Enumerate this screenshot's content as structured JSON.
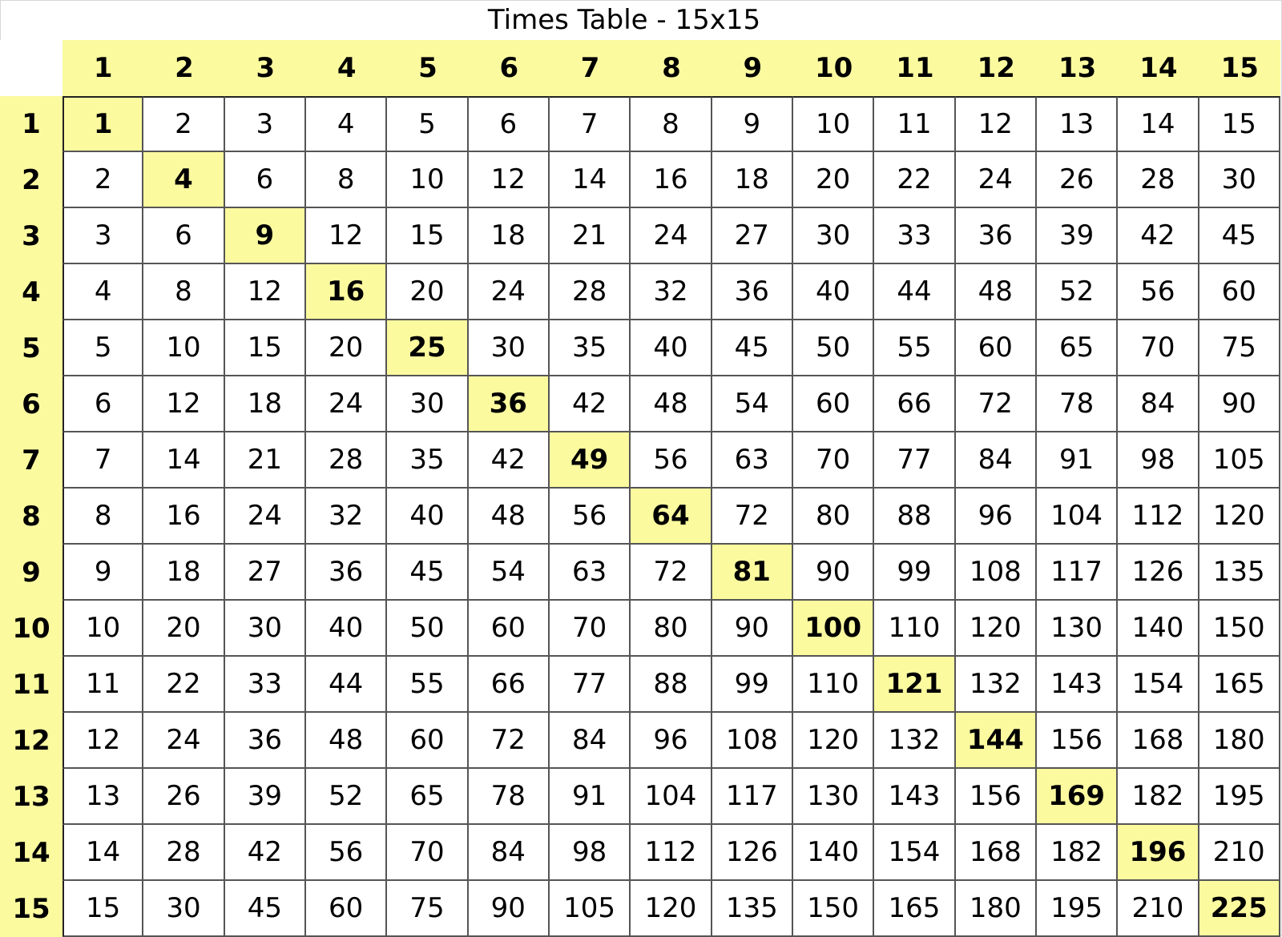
{
  "title": "Times Table - 15x15",
  "colors": {
    "header_bg": "#fbfa9f",
    "diagonal_bg": "#fbfa9f",
    "cell_bg": "#ffffff",
    "border": "#555555"
  },
  "column_headers": [
    "1",
    "2",
    "3",
    "4",
    "5",
    "6",
    "7",
    "8",
    "9",
    "10",
    "11",
    "12",
    "13",
    "14",
    "15"
  ],
  "row_headers": [
    "1",
    "2",
    "3",
    "4",
    "5",
    "6",
    "7",
    "8",
    "9",
    "10",
    "11",
    "12",
    "13",
    "14",
    "15"
  ],
  "rows": [
    [
      "1",
      "2",
      "3",
      "4",
      "5",
      "6",
      "7",
      "8",
      "9",
      "10",
      "11",
      "12",
      "13",
      "14",
      "15"
    ],
    [
      "2",
      "4",
      "6",
      "8",
      "10",
      "12",
      "14",
      "16",
      "18",
      "20",
      "22",
      "24",
      "26",
      "28",
      "30"
    ],
    [
      "3",
      "6",
      "9",
      "12",
      "15",
      "18",
      "21",
      "24",
      "27",
      "30",
      "33",
      "36",
      "39",
      "42",
      "45"
    ],
    [
      "4",
      "8",
      "12",
      "16",
      "20",
      "24",
      "28",
      "32",
      "36",
      "40",
      "44",
      "48",
      "52",
      "56",
      "60"
    ],
    [
      "5",
      "10",
      "15",
      "20",
      "25",
      "30",
      "35",
      "40",
      "45",
      "50",
      "55",
      "60",
      "65",
      "70",
      "75"
    ],
    [
      "6",
      "12",
      "18",
      "24",
      "30",
      "36",
      "42",
      "48",
      "54",
      "60",
      "66",
      "72",
      "78",
      "84",
      "90"
    ],
    [
      "7",
      "14",
      "21",
      "28",
      "35",
      "42",
      "49",
      "56",
      "63",
      "70",
      "77",
      "84",
      "91",
      "98",
      "105"
    ],
    [
      "8",
      "16",
      "24",
      "32",
      "40",
      "48",
      "56",
      "64",
      "72",
      "80",
      "88",
      "96",
      "104",
      "112",
      "120"
    ],
    [
      "9",
      "18",
      "27",
      "36",
      "45",
      "54",
      "63",
      "72",
      "81",
      "90",
      "99",
      "108",
      "117",
      "126",
      "135"
    ],
    [
      "10",
      "20",
      "30",
      "40",
      "50",
      "60",
      "70",
      "80",
      "90",
      "100",
      "110",
      "120",
      "130",
      "140",
      "150"
    ],
    [
      "11",
      "22",
      "33",
      "44",
      "55",
      "66",
      "77",
      "88",
      "99",
      "110",
      "121",
      "132",
      "143",
      "154",
      "165"
    ],
    [
      "12",
      "24",
      "36",
      "48",
      "60",
      "72",
      "84",
      "96",
      "108",
      "120",
      "132",
      "144",
      "156",
      "168",
      "180"
    ],
    [
      "13",
      "26",
      "39",
      "52",
      "65",
      "78",
      "91",
      "104",
      "117",
      "130",
      "143",
      "156",
      "169",
      "182",
      "195"
    ],
    [
      "14",
      "28",
      "42",
      "56",
      "70",
      "84",
      "98",
      "112",
      "126",
      "140",
      "154",
      "168",
      "182",
      "196",
      "210"
    ],
    [
      "15",
      "30",
      "45",
      "60",
      "75",
      "90",
      "105",
      "120",
      "135",
      "150",
      "165",
      "180",
      "195",
      "210",
      "225"
    ]
  ]
}
